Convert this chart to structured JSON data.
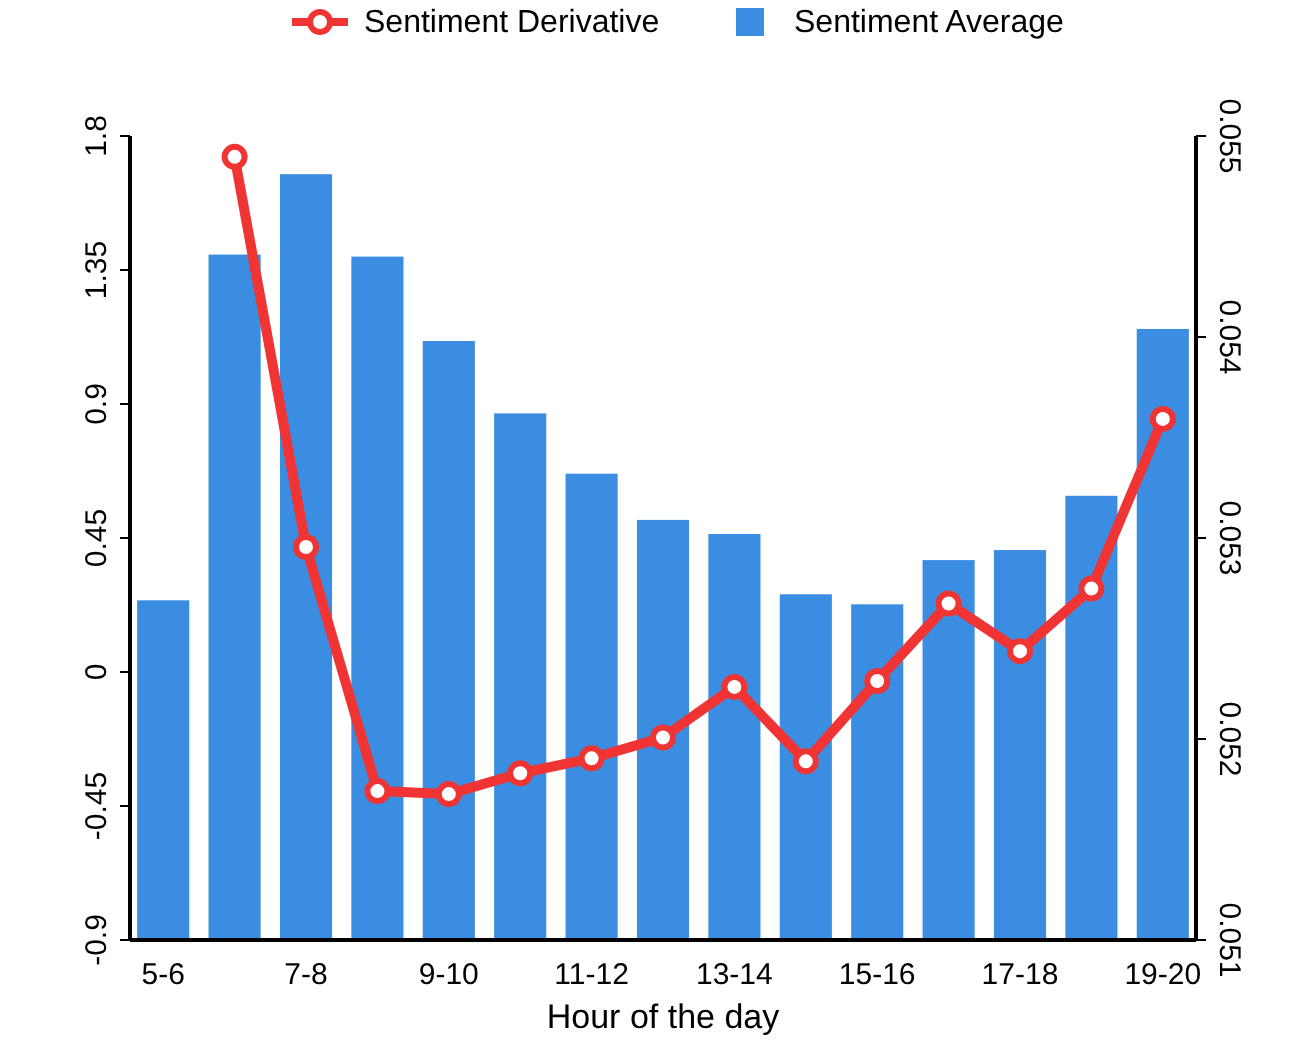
{
  "chart_data": {
    "type": "bar",
    "xlabel": "Hour of the day",
    "categories": [
      "5-6",
      null,
      "7-8",
      null,
      "9-10",
      null,
      "11-12",
      null,
      "13-14",
      null,
      "15-16",
      null,
      "17-18",
      null,
      "19-20"
    ],
    "series": [
      {
        "name": "Sentiment Derivative",
        "type": "line",
        "color": "#f03434",
        "marker": "circle",
        "values": [
          null,
          1.73,
          0.42,
          -0.4,
          -0.41,
          -0.34,
          -0.29,
          -0.22,
          -0.05,
          -0.3,
          -0.03,
          0.23,
          0.07,
          0.28,
          0.85
        ]
      },
      {
        "name": "Sentiment Average",
        "axis": "y2",
        "color": "#3a8de0",
        "values": [
          0.05269,
          0.05441,
          0.05481,
          0.0544,
          0.05398,
          0.05362,
          0.05332,
          0.05309,
          0.05302,
          0.05272,
          0.05267,
          0.05289,
          0.05294,
          0.05321,
          0.05404
        ]
      }
    ],
    "ylim": [
      -0.9,
      1.8
    ],
    "yticks": [
      -0.9,
      -0.45,
      0,
      0.45,
      0.9,
      1.35,
      1.8
    ],
    "y2lim": [
      0.051,
      0.055
    ],
    "y2ticks": [
      0.051,
      0.052,
      0.053,
      0.054,
      0.055
    ],
    "legend": "top",
    "grid": false
  }
}
